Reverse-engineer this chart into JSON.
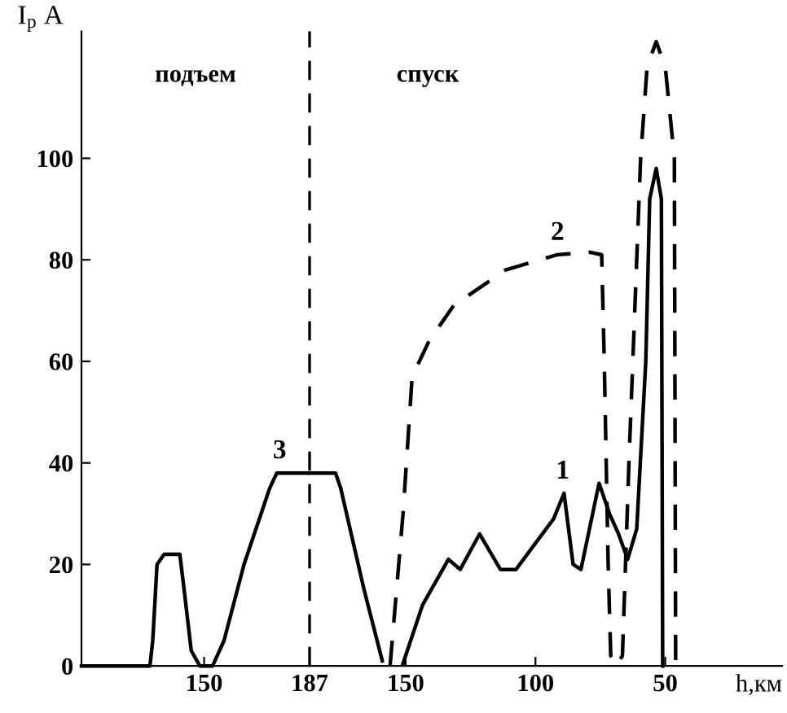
{
  "chart_data": [
    {
      "type": "line",
      "ylabel": "I$_{p}$ A",
      "xlim": [
        107,
        187
      ],
      "xticks": [
        150,
        187
      ],
      "ylim": [
        0,
        125
      ],
      "yticks": [
        0,
        20,
        40,
        60,
        80,
        100
      ],
      "series": [
        {
          "color": "#000000",
          "line_style": "solid",
          "x": [
            107,
            131,
            132,
            133.5,
            136,
            141.5,
            143,
            145.5,
            148.5,
            153,
            157,
            164,
            173,
            175.5,
            187
          ],
          "values": [
            0,
            0,
            5,
            20,
            22,
            22,
            15,
            3,
            0,
            0,
            5,
            20,
            35,
            38,
            38
          ]
        }
      ],
      "annotations": [
        "подъем",
        {
          "text": "3",
          "x": 176.5,
          "y": 38
        }
      ]
    },
    {
      "type": "line",
      "xlabel": "h,км",
      "tick_labels": "x",
      "xlim": [
        187,
        5
      ],
      "xticks": [
        150,
        100,
        50
      ],
      "ylim": [
        0,
        125
      ],
      "series": [
        {
          "color": "#000000",
          "line_style": "solid",
          "x": [
            187,
            177,
            175,
            166,
            159
          ],
          "values": [
            38,
            38,
            35,
            15,
            1
          ]
        },
        {
          "color": "#000000",
          "line_style": "solid",
          "x": [
            151,
            143.5,
            133.5,
            129,
            121.5,
            113.5,
            107.5,
            93,
            89,
            85.5,
            82.5,
            75.5,
            71.5,
            68,
            64.5,
            61,
            57.5,
            56,
            53.5,
            51.5,
            51
          ],
          "values": [
            0.5,
            12,
            21,
            19,
            26,
            19,
            19,
            29,
            34,
            20,
            19,
            36,
            30,
            26,
            21,
            27,
            60,
            92,
            98,
            92,
            0
          ]
        },
        {
          "color": "#000000",
          "line_style": "dashed",
          "x": [
            156,
            153.5,
            151,
            147.5,
            141,
            131.5,
            111.5,
            91.5,
            79,
            74.5,
            73.5,
            72,
            71,
            69,
            66.5,
            64,
            59.5,
            57,
            53.5,
            50,
            46.5,
            46
          ],
          "values": [
            0,
            15,
            30,
            57,
            64,
            71,
            78,
            81,
            81.5,
            81,
            60,
            20,
            2,
            0,
            2,
            40,
            100,
            118,
            123,
            118,
            100,
            0
          ]
        }
      ],
      "ref_lines": [
        {
          "axis": "x",
          "value": 187,
          "color": "#000000",
          "line_style": "dashed"
        }
      ],
      "annotations": [
        "спуск",
        {
          "text": "1",
          "x": 89.5,
          "y": 34
        },
        {
          "text": "2",
          "x": 91.5,
          "y": 81
        }
      ]
    }
  ]
}
